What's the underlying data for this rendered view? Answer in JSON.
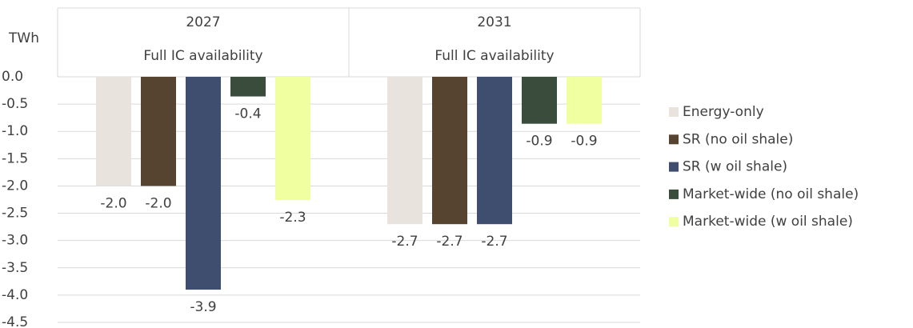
{
  "chart_data": {
    "type": "bar",
    "y_label": "TWh",
    "categories": [
      "2027",
      "2031"
    ],
    "category_subtitles": [
      "Full IC availability",
      "Full IC availability"
    ],
    "series": [
      {
        "name": "Energy-only",
        "color": "#e8e4dd",
        "values": [
          -2.0,
          -2.7
        ],
        "value_labels": [
          "-2.0",
          "-2.7"
        ]
      },
      {
        "name": "SR (no oil shale)",
        "color": "#574430",
        "values": [
          -2.0,
          -2.7
        ],
        "value_labels": [
          "-2.0",
          "-2.7"
        ]
      },
      {
        "name": "SR (w oil shale)",
        "color": "#3f4d6e",
        "values": [
          -3.9,
          -2.7
        ],
        "value_labels": [
          "-3.9",
          "-2.7"
        ]
      },
      {
        "name": "Market-wide (no oil shale)",
        "color": "#3a4d3c",
        "values": [
          -0.36,
          -0.86
        ],
        "value_labels": [
          "-0.4",
          "-0.9"
        ]
      },
      {
        "name": "Market-wide (w oil shale)",
        "color": "#f0ffa0",
        "values": [
          -2.26,
          -0.86
        ],
        "value_labels": [
          "-2.3",
          "-0.9"
        ]
      }
    ],
    "ylim": [
      0,
      -4.5
    ],
    "yticks": [
      {
        "value": 0,
        "label": "0.0"
      },
      -0.5,
      {
        "value": -1,
        "label": "-1.0"
      },
      -1.5,
      {
        "value": -2,
        "label": "-2.0"
      },
      -2.5,
      {
        "value": -3,
        "label": "-3.0"
      },
      -3.5,
      {
        "value": -4,
        "label": "-4.0"
      },
      -4.5
    ],
    "grid": true,
    "legend": "right"
  }
}
